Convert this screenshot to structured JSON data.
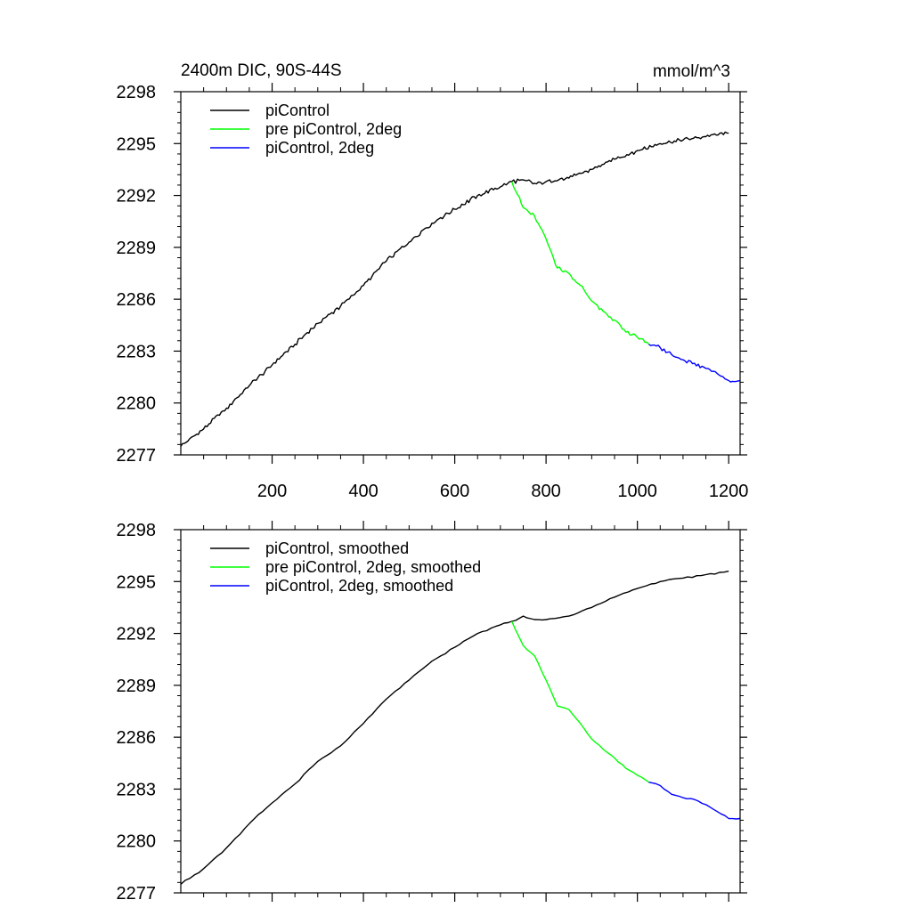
{
  "chart_data": [
    {
      "type": "line",
      "title_left": "2400m DIC, 90S-44S",
      "title_right": "mmol/m^3",
      "xlabel": "",
      "ylabel": "",
      "xlim": [
        0,
        1225
      ],
      "ylim": [
        2277,
        2298
      ],
      "xticks": [
        200,
        400,
        600,
        800,
        1000,
        1200
      ],
      "xtick_labels": [
        "200",
        "400",
        "600",
        "800",
        "1000",
        "1200"
      ],
      "yticks": [
        2277,
        2280,
        2283,
        2286,
        2289,
        2292,
        2295,
        2298
      ],
      "ytick_labels": [
        "2277",
        "2280",
        "2283",
        "2286",
        "2289",
        "2292",
        "2295",
        "2298"
      ],
      "legend_position": "top-left",
      "series": [
        {
          "name": "piControl",
          "color": "#000000",
          "x": [
            0,
            50,
            100,
            150,
            200,
            250,
            300,
            350,
            400,
            450,
            500,
            550,
            600,
            650,
            700,
            725,
            750,
            775,
            800,
            850,
            900,
            950,
            1000,
            1050,
            1100,
            1150,
            1200
          ],
          "y": [
            2277.5,
            2278.5,
            2279.7,
            2281.0,
            2282.2,
            2283.4,
            2284.6,
            2285.6,
            2286.8,
            2288.2,
            2289.3,
            2290.4,
            2291.2,
            2292.0,
            2292.5,
            2292.8,
            2292.9,
            2292.7,
            2292.8,
            2293.0,
            2293.5,
            2294.1,
            2294.6,
            2295.0,
            2295.2,
            2295.4,
            2295.6
          ]
        },
        {
          "name": "pre piControl, 2deg",
          "color": "#00ff00",
          "x": [
            725,
            750,
            775,
            800,
            825,
            850,
            875,
            900,
            925,
            950,
            975,
            1000,
            1025
          ],
          "y": [
            2292.8,
            2291.3,
            2290.8,
            2289.5,
            2287.8,
            2287.5,
            2286.8,
            2285.9,
            2285.3,
            2284.8,
            2284.1,
            2283.8,
            2283.4
          ]
        },
        {
          "name": "piControl, 2deg",
          "color": "#0000ff",
          "x": [
            1025,
            1050,
            1075,
            1100,
            1125,
            1150,
            1175,
            1200,
            1225
          ],
          "y": [
            2283.4,
            2283.2,
            2282.8,
            2282.5,
            2282.3,
            2282.0,
            2281.7,
            2281.3,
            2281.3
          ]
        }
      ]
    },
    {
      "type": "line",
      "xlabel": "",
      "ylabel": "",
      "xlim": [
        0,
        1225
      ],
      "ylim": [
        2277,
        2298
      ],
      "xticks": [
        200,
        400,
        600,
        800,
        1000,
        1200
      ],
      "yticks": [
        2277,
        2280,
        2283,
        2286,
        2289,
        2292,
        2295,
        2298
      ],
      "ytick_labels": [
        "2277",
        "2280",
        "2283",
        "2286",
        "2289",
        "2292",
        "2295",
        "2298"
      ],
      "legend_position": "top-left",
      "series": [
        {
          "name": "piControl, smoothed",
          "color": "#000000",
          "x": [
            0,
            50,
            100,
            150,
            200,
            250,
            300,
            350,
            400,
            450,
            500,
            550,
            600,
            650,
            700,
            725,
            750,
            775,
            800,
            850,
            900,
            950,
            1000,
            1050,
            1100,
            1150,
            1200
          ],
          "y": [
            2277.5,
            2278.4,
            2279.6,
            2281.0,
            2282.2,
            2283.3,
            2284.6,
            2285.5,
            2286.8,
            2288.2,
            2289.3,
            2290.4,
            2291.2,
            2292.0,
            2292.5,
            2292.7,
            2293.0,
            2292.8,
            2292.8,
            2293.0,
            2293.5,
            2294.1,
            2294.6,
            2295.0,
            2295.2,
            2295.4,
            2295.6
          ]
        },
        {
          "name": "pre piControl, 2deg, smoothed",
          "color": "#00ff00",
          "x": [
            725,
            750,
            775,
            800,
            825,
            850,
            875,
            900,
            925,
            950,
            975,
            1000,
            1025
          ],
          "y": [
            2292.7,
            2291.3,
            2290.7,
            2289.3,
            2287.8,
            2287.6,
            2286.8,
            2285.9,
            2285.3,
            2284.8,
            2284.2,
            2283.8,
            2283.4
          ]
        },
        {
          "name": "piControl, 2deg, smoothed",
          "color": "#0000ff",
          "x": [
            1025,
            1050,
            1075,
            1100,
            1125,
            1150,
            1175,
            1200,
            1225
          ],
          "y": [
            2283.4,
            2283.2,
            2282.7,
            2282.5,
            2282.4,
            2282.1,
            2281.7,
            2281.3,
            2281.3
          ]
        }
      ]
    }
  ]
}
